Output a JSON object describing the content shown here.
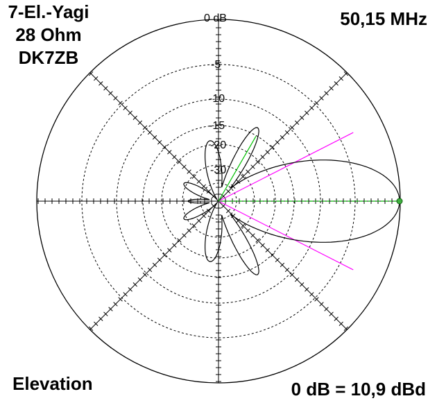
{
  "antenna": {
    "title_lines": [
      "7-El.-Yagi",
      "28 Ohm",
      "DK7ZB"
    ],
    "frequency": "50,15 MHz",
    "plane": "Elevation",
    "reference": "0 dB = 10,9 dBd"
  },
  "scale": {
    "ring_labels": [
      "0 dB",
      "-5",
      "-10",
      "-15",
      "-20",
      "-30"
    ]
  },
  "colors": {
    "pattern": "#000000",
    "grid": "#000000",
    "half_power_lines": "#ff00ff",
    "max_lines": "#00c000",
    "max_marker": "#40b040"
  },
  "pattern": {
    "main_lobe_direction_deg": 0,
    "half_power_beamwidth_deg": 54,
    "side_lobe_direction_deg": 60
  }
}
